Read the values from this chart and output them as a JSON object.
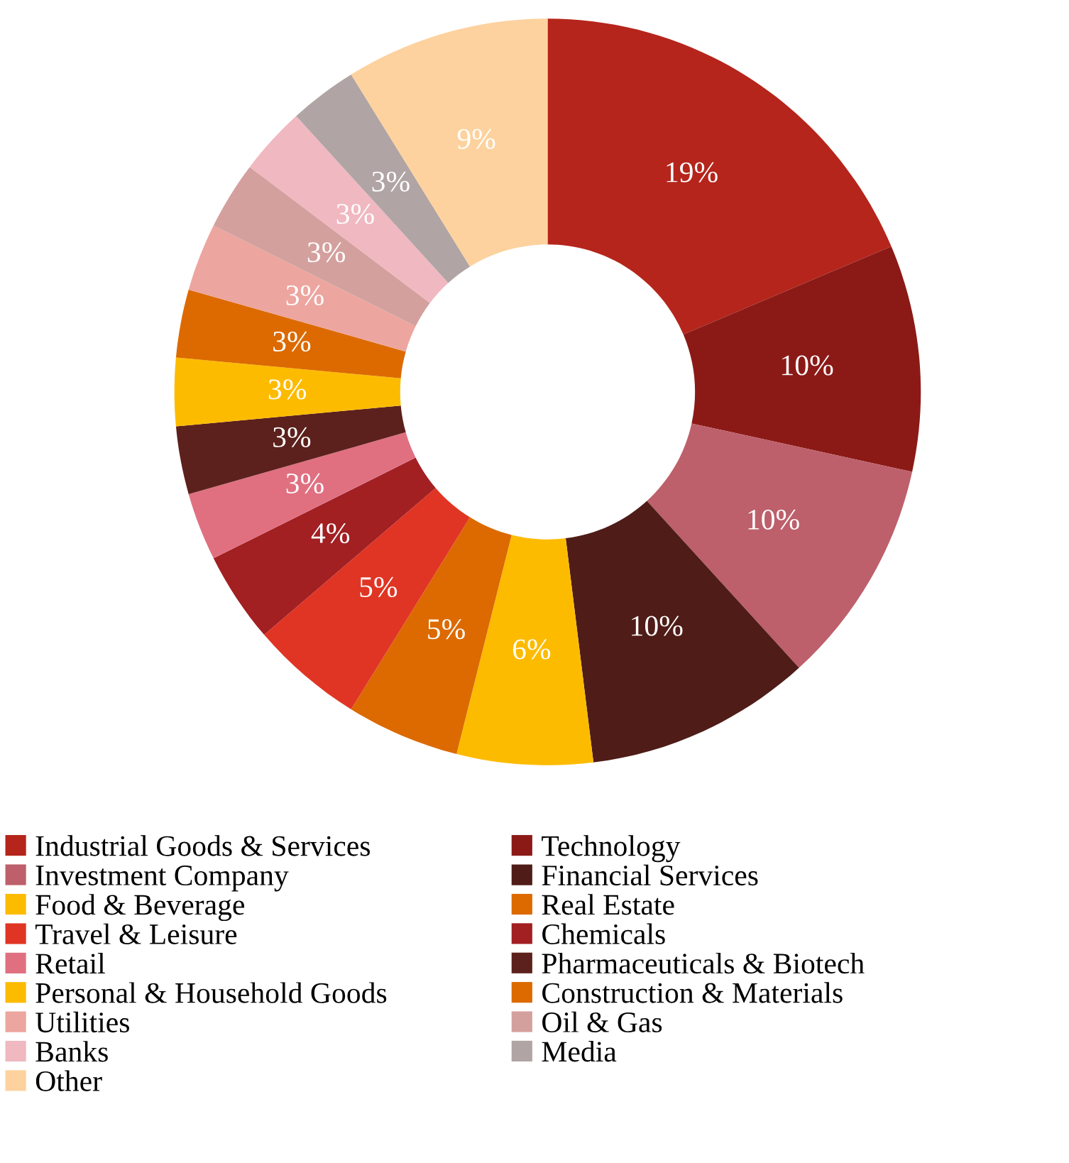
{
  "chart_data": {
    "type": "donut",
    "categories": [
      "Industrial Goods & Services",
      "Technology",
      "Investment Company",
      "Financial Services",
      "Food & Beverage",
      "Real Estate",
      "Travel & Leisure",
      "Chemicals",
      "Retail",
      "Pharmaceuticals & Biotech",
      "Personal & Household Goods",
      "Construction & Materials",
      "Utilities",
      "Oil & Gas",
      "Banks",
      "Media",
      "Other"
    ],
    "values": [
      19,
      10,
      10,
      10,
      6,
      5,
      5,
      4,
      3,
      3,
      3,
      3,
      3,
      3,
      3,
      3,
      9
    ],
    "colors": [
      "#b5251b",
      "#8b1a17",
      "#bd606b",
      "#4f1c17",
      "#fdbb00",
      "#dc6a00",
      "#e03524",
      "#a21f22",
      "#e07080",
      "#5c211c",
      "#fdbb00",
      "#dc6a00",
      "#eda59f",
      "#d4a09e",
      "#f0b8c0",
      "#b0a4a4",
      "#fdd29e"
    ],
    "value_labels": [
      "19%",
      "10%",
      "10%",
      "10%",
      "6%",
      "5%",
      "5%",
      "4%",
      "3%",
      "3%",
      "3%",
      "3%",
      "3%",
      "3%",
      "3%",
      "3%",
      "9%"
    ],
    "legend": "bottom"
  }
}
